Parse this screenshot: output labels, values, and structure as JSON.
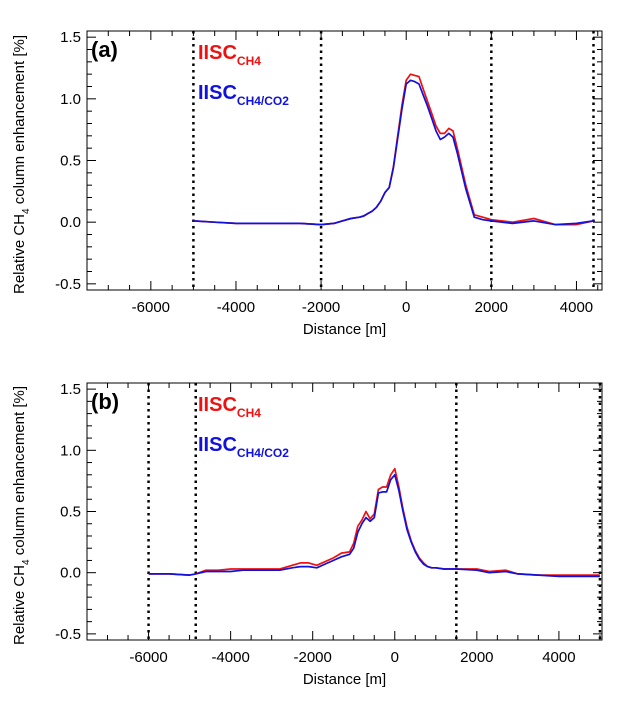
{
  "chart_data": [
    {
      "type": "line",
      "panel_label": "(a)",
      "xlabel": "Distance [m]",
      "ylabel_main": "Relative CH",
      "ylabel_sub": "4",
      "ylabel_tail": " column enhancement [%]",
      "xlim": [
        -7500,
        4600
      ],
      "ylim": [
        -0.55,
        1.55
      ],
      "xticks": [
        -6000,
        -4000,
        -2000,
        0,
        2000,
        4000
      ],
      "xtick_labels": [
        "-6000",
        "-4000",
        "-2000",
        "0",
        "2000",
        "4000"
      ],
      "yticks": [
        -0.5,
        0,
        0.5,
        1.0,
        1.5
      ],
      "ytick_labels": [
        "-0.5",
        "0.0",
        "0.5",
        "1.0",
        "1.5"
      ],
      "grid": false,
      "vlines": [
        -5000,
        -2000,
        2000,
        4400
      ],
      "legend": [
        {
          "main": "IISC",
          "sub": "CH4",
          "color": "#ee1111"
        },
        {
          "main": "IISC",
          "sub": "CH4/CO2",
          "color": "#1111dd"
        }
      ],
      "series": [
        {
          "color": "#ee1111",
          "x": [
            -5000,
            -4500,
            -4000,
            -3500,
            -3000,
            -2500,
            -2000,
            -1700,
            -1500,
            -1300,
            -1100,
            -1000,
            -900,
            -800,
            -700,
            -600,
            -500,
            -400,
            -300,
            -200,
            -100,
            0,
            100,
            200,
            300,
            400,
            500,
            600,
            700,
            800,
            900,
            1000,
            1100,
            1200,
            1400,
            1600,
            1800,
            2000,
            2500,
            3000,
            3500,
            4000,
            4400
          ],
          "y": [
            0.01,
            0.0,
            -0.01,
            -0.01,
            -0.01,
            -0.01,
            -0.02,
            -0.01,
            0.01,
            0.03,
            0.04,
            0.05,
            0.07,
            0.09,
            0.12,
            0.17,
            0.24,
            0.28,
            0.45,
            0.7,
            0.95,
            1.15,
            1.2,
            1.19,
            1.18,
            1.08,
            0.98,
            0.88,
            0.78,
            0.72,
            0.72,
            0.76,
            0.74,
            0.6,
            0.3,
            0.06,
            0.04,
            0.02,
            0.0,
            0.03,
            -0.02,
            -0.02,
            0.01
          ]
        },
        {
          "color": "#1111dd",
          "x": [
            -5000,
            -4500,
            -4000,
            -3500,
            -3000,
            -2500,
            -2000,
            -1700,
            -1500,
            -1300,
            -1100,
            -1000,
            -900,
            -800,
            -700,
            -600,
            -500,
            -400,
            -300,
            -200,
            -100,
            0,
            100,
            200,
            300,
            400,
            500,
            600,
            700,
            800,
            900,
            1000,
            1100,
            1200,
            1400,
            1600,
            1800,
            2000,
            2500,
            3000,
            3500,
            4000,
            4400
          ],
          "y": [
            0.01,
            0.0,
            -0.01,
            -0.01,
            -0.01,
            -0.01,
            -0.02,
            -0.01,
            0.01,
            0.03,
            0.04,
            0.05,
            0.07,
            0.09,
            0.12,
            0.17,
            0.24,
            0.28,
            0.44,
            0.68,
            0.92,
            1.12,
            1.15,
            1.14,
            1.12,
            1.03,
            0.94,
            0.84,
            0.74,
            0.67,
            0.69,
            0.72,
            0.69,
            0.56,
            0.27,
            0.04,
            0.02,
            0.01,
            -0.01,
            0.01,
            -0.02,
            -0.01,
            0.01
          ]
        }
      ]
    },
    {
      "type": "line",
      "panel_label": "(b)",
      "xlabel": "Distance [m]",
      "ylabel_main": "Relative CH",
      "ylabel_sub": "4",
      "ylabel_tail": " column enhancement [%]",
      "xlim": [
        -7500,
        5050
      ],
      "ylim": [
        -0.55,
        1.55
      ],
      "xticks": [
        -6000,
        -4000,
        -2000,
        0,
        2000,
        4000
      ],
      "xtick_labels": [
        "-6000",
        "-4000",
        "-2000",
        "0",
        "2000",
        "4000"
      ],
      "yticks": [
        -0.5,
        0,
        0.5,
        1.0,
        1.5
      ],
      "ytick_labels": [
        "-0.5",
        "0.0",
        "0.5",
        "1.0",
        "1.5"
      ],
      "grid": false,
      "vlines": [
        -6000,
        -4850,
        1500,
        5000
      ],
      "legend": [
        {
          "main": "IISC",
          "sub": "CH4",
          "color": "#ee1111"
        },
        {
          "main": "IISC",
          "sub": "CH4/CO2",
          "color": "#1111dd"
        }
      ],
      "series": [
        {
          "color": "#ee1111",
          "x": [
            -6000,
            -5500,
            -5000,
            -4850,
            -4600,
            -4300,
            -4000,
            -3700,
            -3300,
            -3000,
            -2800,
            -2500,
            -2300,
            -2100,
            -1900,
            -1700,
            -1500,
            -1300,
            -1100,
            -1000,
            -900,
            -800,
            -700,
            -600,
            -500,
            -400,
            -300,
            -200,
            -100,
            0,
            100,
            200,
            300,
            400,
            500,
            600,
            700,
            800,
            900,
            1000,
            1200,
            1500,
            2000,
            2300,
            2700,
            3000,
            3500,
            4000,
            4500,
            5000
          ],
          "y": [
            -0.01,
            -0.01,
            -0.02,
            -0.01,
            0.02,
            0.02,
            0.03,
            0.03,
            0.03,
            0.03,
            0.03,
            0.06,
            0.08,
            0.08,
            0.06,
            0.09,
            0.12,
            0.16,
            0.17,
            0.24,
            0.38,
            0.43,
            0.5,
            0.44,
            0.48,
            0.68,
            0.7,
            0.7,
            0.8,
            0.85,
            0.7,
            0.52,
            0.37,
            0.26,
            0.18,
            0.12,
            0.08,
            0.05,
            0.04,
            0.04,
            0.03,
            0.03,
            0.03,
            0.01,
            0.02,
            -0.01,
            -0.02,
            -0.02,
            -0.02,
            -0.02
          ]
        },
        {
          "color": "#1111dd",
          "x": [
            -6000,
            -5500,
            -5000,
            -4850,
            -4600,
            -4300,
            -4000,
            -3700,
            -3300,
            -3000,
            -2800,
            -2500,
            -2300,
            -2100,
            -1900,
            -1700,
            -1500,
            -1300,
            -1100,
            -1000,
            -900,
            -800,
            -700,
            -600,
            -500,
            -400,
            -300,
            -200,
            -100,
            0,
            100,
            200,
            300,
            400,
            500,
            600,
            700,
            800,
            900,
            1000,
            1200,
            1500,
            2000,
            2300,
            2700,
            3000,
            3500,
            4000,
            4500,
            5000
          ],
          "y": [
            -0.01,
            -0.01,
            -0.02,
            -0.01,
            0.01,
            0.01,
            0.01,
            0.02,
            0.02,
            0.02,
            0.02,
            0.04,
            0.05,
            0.05,
            0.04,
            0.07,
            0.1,
            0.13,
            0.15,
            0.2,
            0.33,
            0.4,
            0.45,
            0.42,
            0.45,
            0.65,
            0.66,
            0.66,
            0.76,
            0.8,
            0.67,
            0.5,
            0.35,
            0.25,
            0.17,
            0.11,
            0.07,
            0.05,
            0.04,
            0.04,
            0.03,
            0.03,
            0.02,
            0.0,
            0.01,
            -0.01,
            -0.02,
            -0.03,
            -0.03,
            -0.03
          ]
        }
      ]
    }
  ]
}
